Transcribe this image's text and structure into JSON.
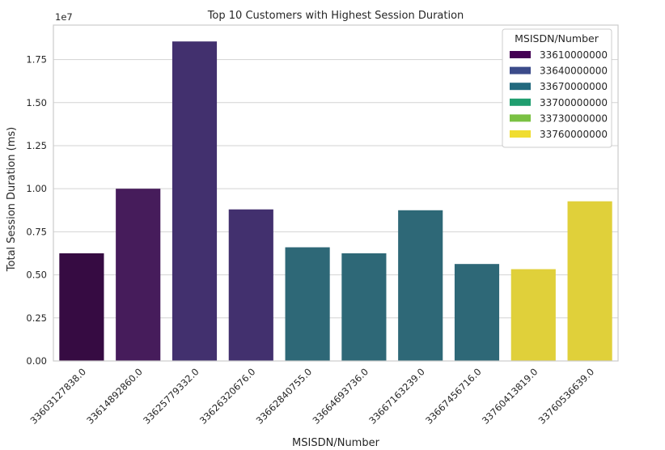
{
  "chart_data": {
    "type": "bar",
    "title": "Top 10 Customers with Highest Session Duration",
    "xlabel": "MSISDN/Number",
    "ylabel": "Total Session Duration (ms)",
    "y_scale_label": "1e7",
    "ylim": [
      0,
      19500000
    ],
    "yticks": [
      0,
      2500000,
      5000000,
      7500000,
      10000000,
      12500000,
      15000000,
      17500000
    ],
    "ytick_labels": [
      "0.00",
      "0.25",
      "0.50",
      "0.75",
      "1.00",
      "1.25",
      "1.50",
      "1.75"
    ],
    "grid": true,
    "categories": [
      "33603127838.0",
      "33614892860.0",
      "33625779332.0",
      "33626320676.0",
      "33662840755.0",
      "33664693736.0",
      "33667163239.0",
      "33667456716.0",
      "33760413819.0",
      "33760536639.0"
    ],
    "values": [
      6250000,
      10000000,
      18550000,
      8800000,
      6600000,
      6250000,
      8750000,
      5630000,
      5330000,
      9270000
    ],
    "bar_colors": [
      "#360b42",
      "#461c5b",
      "#42306e",
      "#42306e",
      "#2e6877",
      "#2e6877",
      "#2e6877",
      "#2e6877",
      "#e0d03a",
      "#e0d03a"
    ],
    "legend": {
      "title": "MSISDN/Number",
      "placement": "top-right",
      "entries": [
        {
          "label": "33610000000",
          "color": "#440154"
        },
        {
          "label": "33640000000",
          "color": "#3b4b8a"
        },
        {
          "label": "33670000000",
          "color": "#22697e"
        },
        {
          "label": "33700000000",
          "color": "#1f9e6f"
        },
        {
          "label": "33730000000",
          "color": "#7ac143"
        },
        {
          "label": "33760000000",
          "color": "#f0dd30"
        }
      ]
    }
  }
}
